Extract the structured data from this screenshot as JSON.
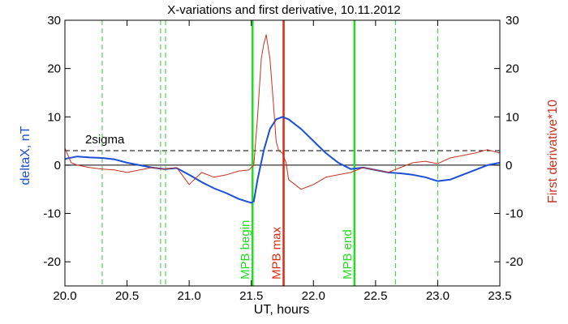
{
  "chart_data": {
    "type": "line",
    "title": "X-variations and first derivative, 10.11.2012",
    "xlabel": "UT, hours",
    "ylabel_left": "deltaX, nT",
    "ylabel_right": "First derivative*10",
    "xlim": [
      20.0,
      23.5
    ],
    "ylim": [
      -25,
      30
    ],
    "x_ticks": [
      20.0,
      20.5,
      21.0,
      21.5,
      22.0,
      22.5,
      23.0,
      23.5
    ],
    "y_ticks": [
      -20,
      -10,
      0,
      10,
      20,
      30
    ],
    "colors": {
      "deltax": "#1a4fd6",
      "derivative": "#c8321e",
      "mpb": "#22dd22",
      "mpb_max": "#dd2a10",
      "guides": "#33cc33",
      "axes": "#000000"
    },
    "series": [
      {
        "name": "deltaX, nT",
        "x": [
          20.0,
          20.1,
          20.2,
          20.3,
          20.4,
          20.5,
          20.6,
          20.7,
          20.8,
          20.9,
          21.0,
          21.1,
          21.2,
          21.3,
          21.4,
          21.5,
          21.52,
          21.55,
          21.6,
          21.65,
          21.7,
          21.75,
          21.8,
          21.9,
          22.0,
          22.1,
          22.2,
          22.3,
          22.4,
          22.5,
          22.6,
          22.7,
          22.8,
          22.9,
          23.0,
          23.1,
          23.2,
          23.3,
          23.4,
          23.5
        ],
        "values": [
          1.3,
          1.8,
          1.6,
          1.5,
          1.2,
          0.5,
          0.0,
          -0.5,
          -0.8,
          -0.6,
          -2.0,
          -3.5,
          -4.8,
          -5.8,
          -7.0,
          -7.8,
          -7.5,
          -3.0,
          3.0,
          7.5,
          9.5,
          10.0,
          9.5,
          7.5,
          5.0,
          2.5,
          0.5,
          -0.8,
          -0.5,
          -1.0,
          -1.5,
          -1.7,
          -2.0,
          -2.5,
          -3.3,
          -3.0,
          -2.0,
          -1.0,
          0.0,
          0.5
        ]
      },
      {
        "name": "First derivative*10",
        "x": [
          20.0,
          20.05,
          20.1,
          20.2,
          20.3,
          20.4,
          20.5,
          20.6,
          20.7,
          20.8,
          20.9,
          21.0,
          21.1,
          21.2,
          21.3,
          21.4,
          21.48,
          21.52,
          21.55,
          21.58,
          21.6,
          21.62,
          21.65,
          21.68,
          21.7,
          21.72,
          21.75,
          21.78,
          21.8,
          21.9,
          22.0,
          22.1,
          22.2,
          22.3,
          22.4,
          22.5,
          22.6,
          22.7,
          22.8,
          22.9,
          23.0,
          23.1,
          23.2,
          23.3,
          23.4,
          23.5
        ],
        "values": [
          3.5,
          0.5,
          0.0,
          -0.5,
          -0.8,
          -1.0,
          -1.5,
          -1.0,
          -0.5,
          -0.8,
          -0.5,
          -4.0,
          -1.5,
          -2.5,
          -2.0,
          -1.2,
          -1.0,
          0.0,
          10.0,
          22.0,
          25.0,
          27.0,
          22.0,
          12.0,
          5.0,
          3.0,
          2.5,
          0.5,
          -3.0,
          -5.0,
          -4.0,
          -2.5,
          -2.0,
          -1.5,
          -0.5,
          -1.0,
          -1.5,
          -0.5,
          0.5,
          0.8,
          0.3,
          1.5,
          2.0,
          2.5,
          3.2,
          2.5
        ]
      }
    ],
    "threshold": {
      "label": "2sigma",
      "value": 3.0
    },
    "guide_lines_x": [
      20.3,
      20.77,
      20.81,
      22.66,
      23.0
    ],
    "markers": [
      {
        "label": "MPB begin",
        "x": 21.51,
        "kind": "mpb"
      },
      {
        "label": "MPB max",
        "x": 21.76,
        "kind": "mpb_max"
      },
      {
        "label": "MPB end",
        "x": 22.33,
        "kind": "mpb"
      }
    ],
    "grid": false,
    "legend": "none"
  }
}
